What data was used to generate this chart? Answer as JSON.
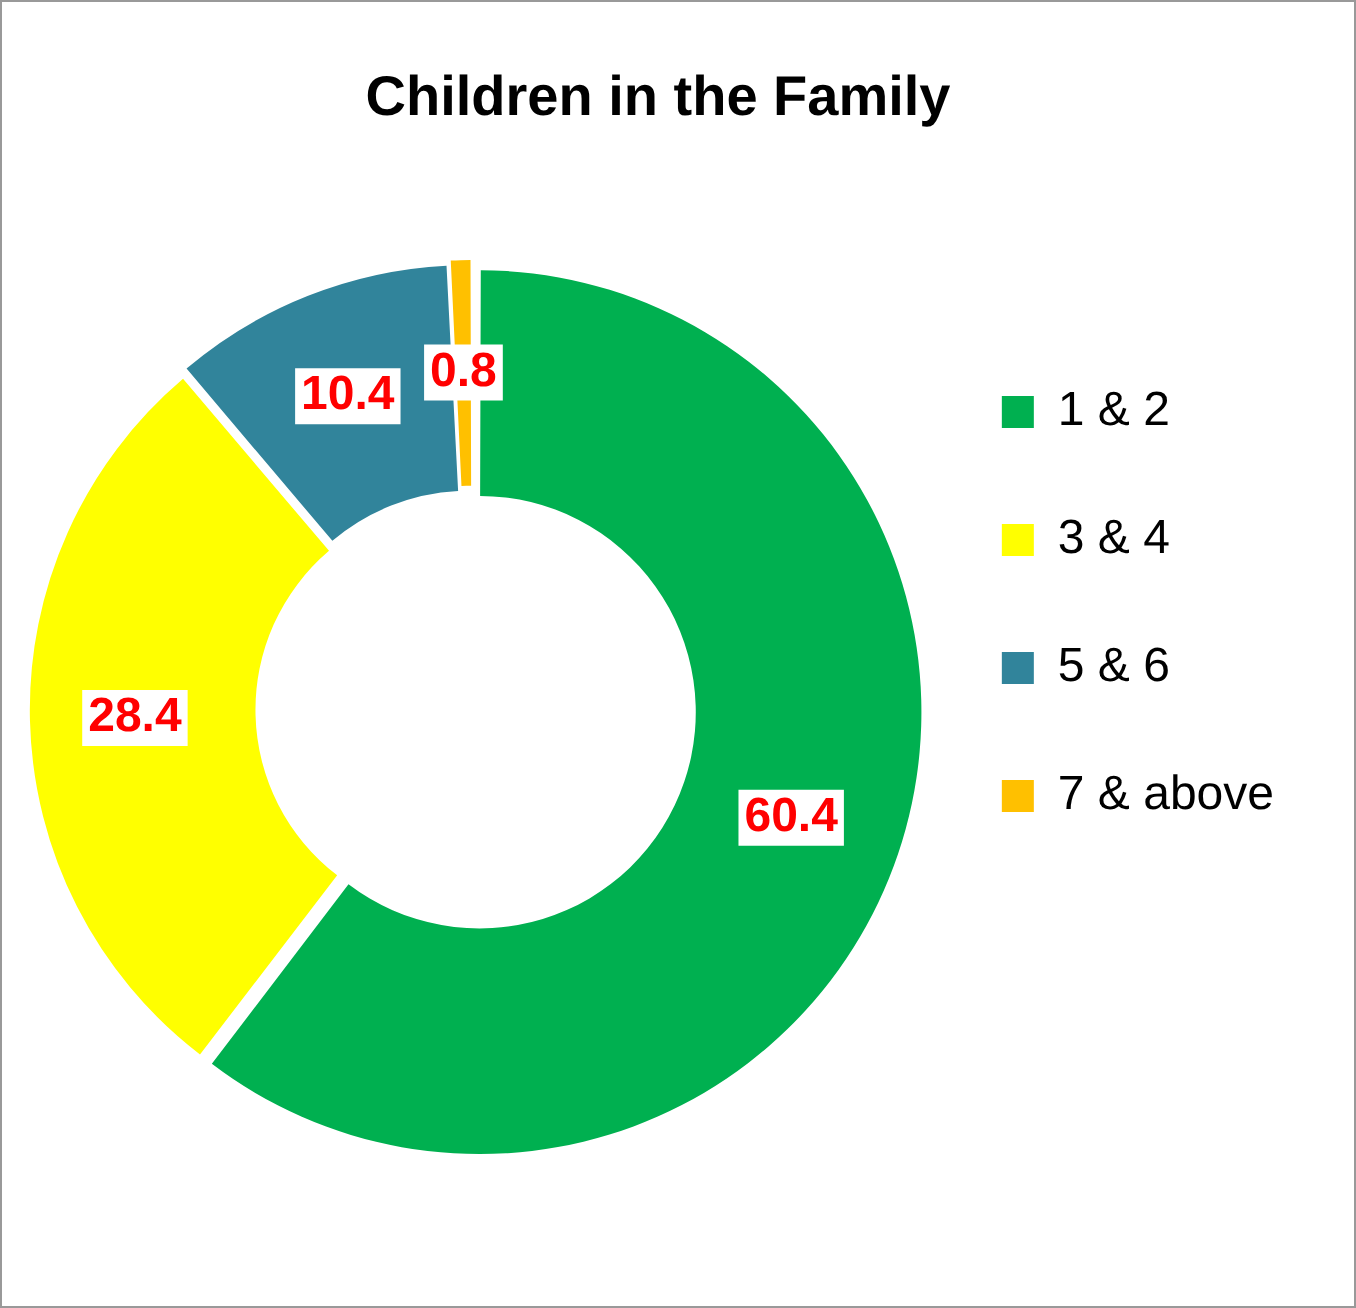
{
  "chart_data": {
    "type": "donut",
    "title": "Children in the Family",
    "categories": [
      "1 & 2",
      "3 & 4",
      "5 & 6",
      "7 & above"
    ],
    "values": [
      60.4,
      28.4,
      10.4,
      0.8
    ],
    "colors": [
      "#00b050",
      "#ffff00",
      "#31849b",
      "#ffc000"
    ],
    "data_labels": true,
    "legend": "right"
  }
}
